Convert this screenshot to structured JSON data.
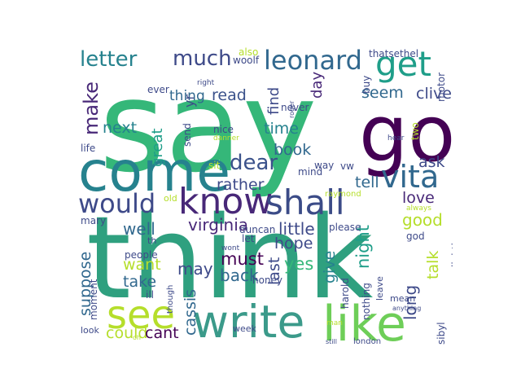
{
  "palette": {
    "dark_purple": "#440154",
    "purple": "#482878",
    "indigo": "#3e4a89",
    "slate_blue": "#31688e",
    "teal_blue": "#26828e",
    "teal": "#1f9e89",
    "green": "#35b779",
    "light_green": "#6ece58",
    "lime": "#b5de2b",
    "yellow": "#fde725"
  },
  "words": [
    {
      "text": "say",
      "color": "#35b779"
    },
    {
      "text": "think",
      "color": "#2fa07f"
    },
    {
      "text": "go",
      "color": "#440154"
    },
    {
      "text": "come",
      "color": "#26828e"
    },
    {
      "text": "write",
      "color": "#3b9a8a"
    },
    {
      "text": "like",
      "color": "#6ece58"
    },
    {
      "text": "know",
      "color": "#482878"
    },
    {
      "text": "see",
      "color": "#b5de2b"
    },
    {
      "text": "shall",
      "color": "#3b4b87"
    },
    {
      "text": "get",
      "color": "#1f9e89"
    },
    {
      "text": "would",
      "color": "#3e4a89"
    },
    {
      "text": "vita",
      "color": "#31688e"
    },
    {
      "text": "leonard",
      "color": "#31688e"
    },
    {
      "text": "letter",
      "color": "#26828e"
    },
    {
      "text": "much",
      "color": "#3e4a89"
    },
    {
      "text": "make",
      "color": "#482878"
    },
    {
      "text": "dear",
      "color": "#3b528b"
    },
    {
      "text": "virginia",
      "color": "#482878"
    },
    {
      "text": "read",
      "color": "#3b528b"
    },
    {
      "text": "thing",
      "color": "#31688e"
    },
    {
      "text": "seem",
      "color": "#31688e"
    },
    {
      "text": "clive",
      "color": "#3e4a89"
    },
    {
      "text": "time",
      "color": "#26828e"
    },
    {
      "text": "next",
      "color": "#26828e"
    },
    {
      "text": "book",
      "color": "#31688e"
    },
    {
      "text": "tell",
      "color": "#31688e"
    },
    {
      "text": "ask",
      "color": "#3e4a89"
    },
    {
      "text": "love",
      "color": "#482878"
    },
    {
      "text": "well",
      "color": "#31688e"
    },
    {
      "text": "rather",
      "color": "#3e4a89"
    },
    {
      "text": "little",
      "color": "#3e4a89"
    },
    {
      "text": "good",
      "color": "#b5de2b"
    },
    {
      "text": "hope",
      "color": "#3e4a89"
    },
    {
      "text": "must",
      "color": "#440154"
    },
    {
      "text": "yes",
      "color": "#35b779"
    },
    {
      "text": "night",
      "color": "#1f9e89"
    },
    {
      "text": "want",
      "color": "#b5de2b"
    },
    {
      "text": "take",
      "color": "#31688e"
    },
    {
      "text": "may",
      "color": "#3e4a89"
    },
    {
      "text": "back",
      "color": "#31688e"
    },
    {
      "text": "give",
      "color": "#26828e"
    },
    {
      "text": "talk",
      "color": "#b5de2b"
    },
    {
      "text": "last",
      "color": "#3e4a89"
    },
    {
      "text": "could",
      "color": "#b5de2b"
    },
    {
      "text": "cant",
      "color": "#440154"
    },
    {
      "text": "cassis",
      "color": "#31688e"
    },
    {
      "text": "long",
      "color": "#3e4a89"
    },
    {
      "text": "suppose",
      "color": "#31688e"
    },
    {
      "text": "great",
      "color": "#1f9e89"
    },
    {
      "text": "day",
      "color": "#482878"
    },
    {
      "text": "find",
      "color": "#3e4a89"
    },
    {
      "text": "yr",
      "color": "#3e4a89"
    },
    {
      "text": "woolf",
      "color": "#3e4a89"
    },
    {
      "text": "also",
      "color": "#b5de2b"
    },
    {
      "text": "thatsethel",
      "color": "#3e4a89"
    },
    {
      "text": "buy",
      "color": "#3e4a89"
    },
    {
      "text": "motor",
      "color": "#3e4a89"
    },
    {
      "text": "two",
      "color": "#b5de2b"
    },
    {
      "text": "never",
      "color": "#3e4a89"
    },
    {
      "text": "ever",
      "color": "#3e4a89"
    },
    {
      "text": "right",
      "color": "#3e4a89"
    },
    {
      "text": "send",
      "color": "#3e4a89"
    },
    {
      "text": "nice",
      "color": "#3e4a89"
    },
    {
      "text": "danner",
      "color": "#b5de2b"
    },
    {
      "text": "hear",
      "color": "#3e4a89"
    },
    {
      "text": "way",
      "color": "#3e4a89"
    },
    {
      "text": "mind",
      "color": "#3e4a89"
    },
    {
      "text": "vw",
      "color": "#3e4a89"
    },
    {
      "text": "life",
      "color": "#3e4a89"
    },
    {
      "text": "sit",
      "color": "#b5de2b"
    },
    {
      "text": "raymond",
      "color": "#b5de2b"
    },
    {
      "text": "lighthouse",
      "color": "#3e4a89"
    },
    {
      "text": "always",
      "color": "#b5de2b"
    },
    {
      "text": "mary",
      "color": "#3e4a89"
    },
    {
      "text": "old",
      "color": "#b5de2b"
    },
    {
      "text": "duncan",
      "color": "#3e4a89"
    },
    {
      "text": "please",
      "color": "#3e4a89"
    },
    {
      "text": "god",
      "color": "#3e4a89"
    },
    {
      "text": "th",
      "color": "#3e4a89"
    },
    {
      "text": "let",
      "color": "#3e4a89"
    },
    {
      "text": "wont",
      "color": "#3e4a89"
    },
    {
      "text": "people",
      "color": "#3e4a89"
    },
    {
      "text": "moment",
      "color": "#3e4a89"
    },
    {
      "text": "honey",
      "color": "#3e4a89"
    },
    {
      "text": "ill",
      "color": "#3e4a89"
    },
    {
      "text": "though",
      "color": "#3e4a89"
    },
    {
      "text": "harold",
      "color": "#3e4a89"
    },
    {
      "text": "nothing",
      "color": "#3e4a89"
    },
    {
      "text": "leave",
      "color": "#3e4a89"
    },
    {
      "text": "mean",
      "color": "#3e4a89"
    },
    {
      "text": "anything",
      "color": "#3e4a89"
    },
    {
      "text": "sibyl",
      "color": "#3e4a89"
    },
    {
      "text": "look",
      "color": "#3e4a89"
    },
    {
      "text": "week",
      "color": "#3e4a89"
    },
    {
      "text": "man",
      "color": "#b5de2b"
    },
    {
      "text": "oh",
      "color": "#b5de2b"
    },
    {
      "text": "still",
      "color": "#3e4a89"
    },
    {
      "text": "london",
      "color": "#3e4a89"
    },
    {
      "text": "roger",
      "color": "#3e4a89"
    }
  ]
}
